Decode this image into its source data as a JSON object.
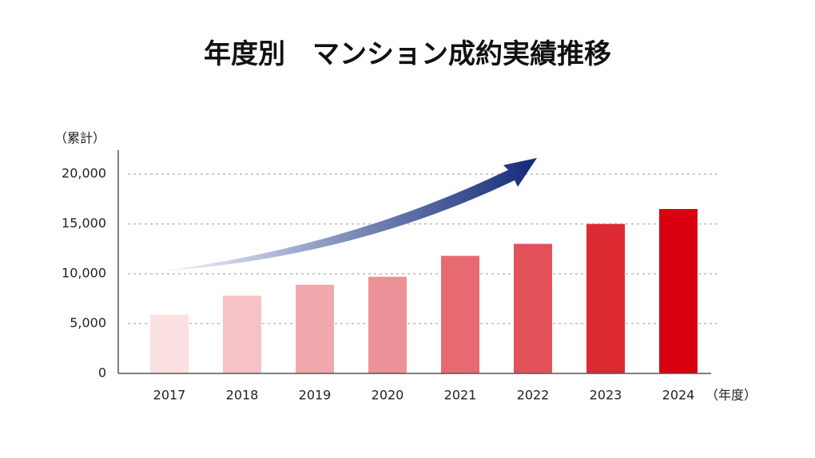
{
  "chart_data": {
    "type": "bar",
    "title": "年度別　マンション成約実績推移",
    "y_label": "（累計）",
    "x_label": "（年度）",
    "categories": [
      "2017",
      "2018",
      "2019",
      "2020",
      "2021",
      "2022",
      "2023",
      "2024"
    ],
    "values": [
      5900,
      7800,
      8900,
      9700,
      11800,
      13000,
      15000,
      16500
    ],
    "colors": [
      "#fbe1e2",
      "#f6c2c5",
      "#f1a8ac",
      "#ec9197",
      "#e76a72",
      "#e2515a",
      "#dc2a33",
      "#d9000f"
    ],
    "ylim": [
      0,
      22500
    ],
    "yticks": [
      0,
      {
        "value": 5000,
        "label": "5,000"
      },
      {
        "value": 10000,
        "label": "10,000"
      },
      {
        "value": 15000,
        "label": "15,000"
      },
      {
        "value": 20000,
        "label": "20,000"
      }
    ],
    "grid": true
  }
}
